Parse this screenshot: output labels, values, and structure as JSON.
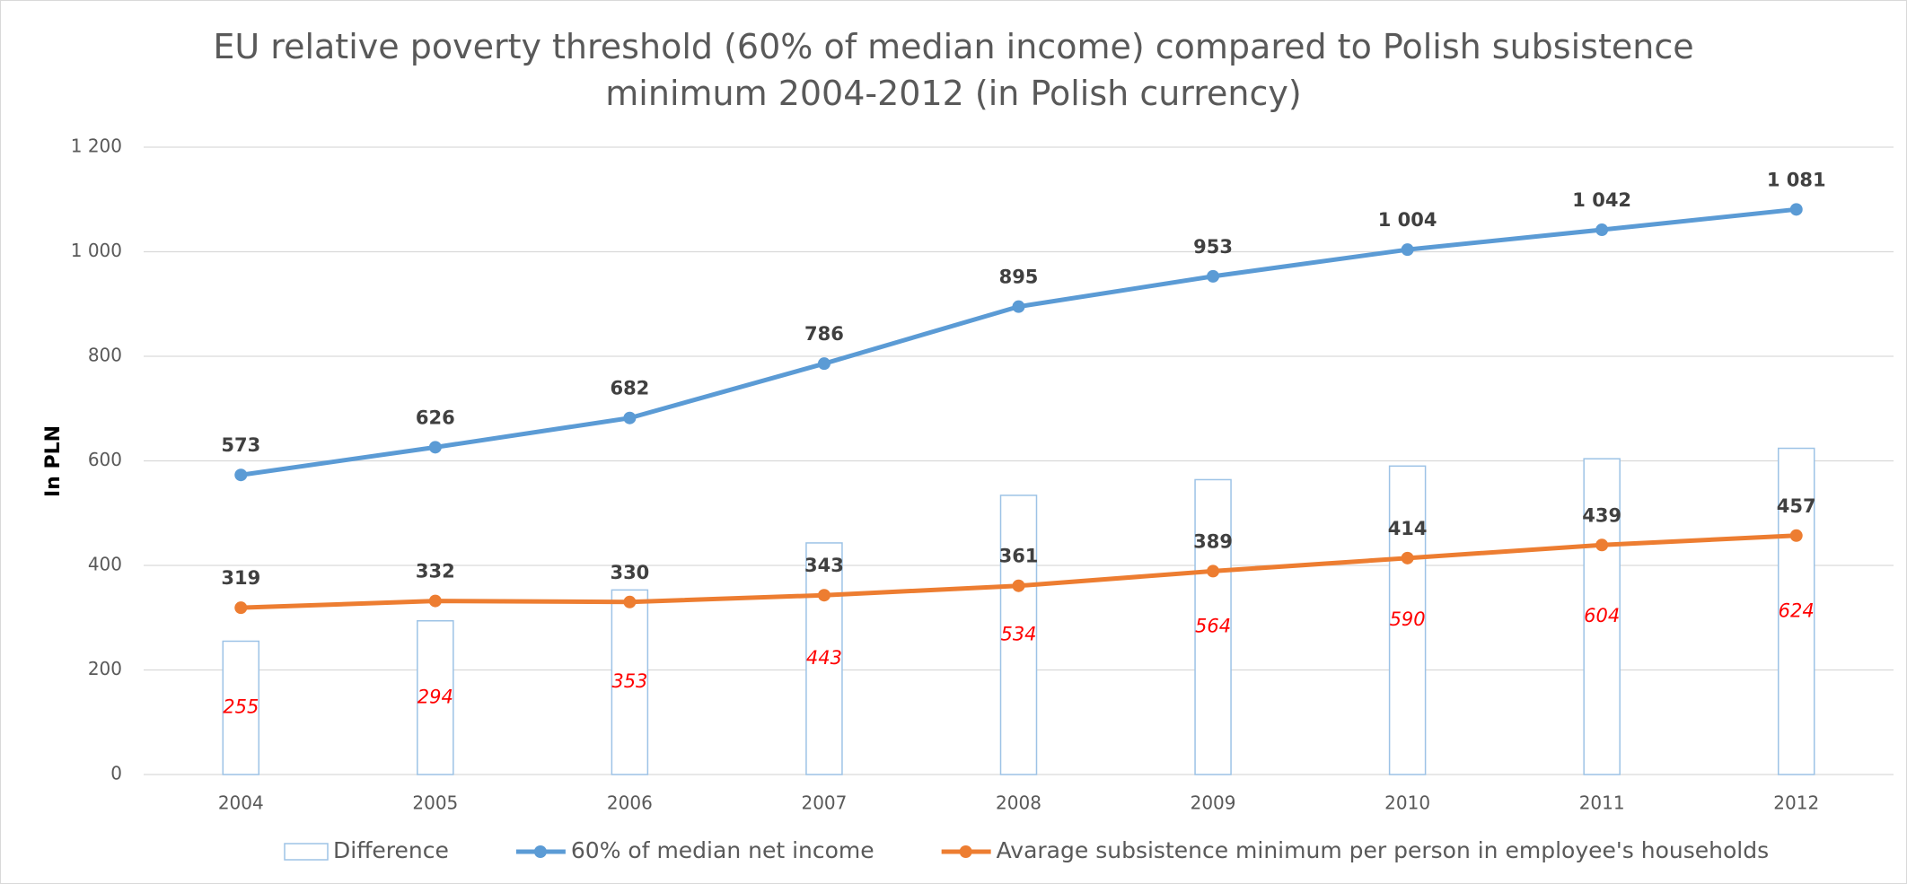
{
  "chart_data": {
    "type": "combo",
    "title": "EU relative poverty threshold (60% of median income) compared to Polish subsistence minimum 2004-2012 (in Polish currency)",
    "y_label": "In PLN",
    "categories": [
      "2004",
      "2005",
      "2006",
      "2007",
      "2008",
      "2009",
      "2010",
      "2011",
      "2012"
    ],
    "ylim": [
      0,
      1200
    ],
    "yticks": [
      0,
      200,
      400,
      600,
      800,
      {
        "value": 1000,
        "label": "1 000"
      },
      {
        "value": 1200,
        "label": "1 200"
      }
    ],
    "grid": true,
    "legend": "bottom",
    "series": [
      {
        "name": "Difference",
        "type": "bar",
        "color": "#9dc3e6",
        "label_color": "#ff0000",
        "values": [
          255,
          294,
          353,
          443,
          534,
          564,
          590,
          604,
          624
        ]
      },
      {
        "name": "60% of median net income",
        "type": "line",
        "color": "#5b9bd5",
        "values": [
          573,
          626,
          682,
          786,
          895,
          953,
          1004,
          1042,
          1081
        ],
        "value_labels": [
          "573",
          "626",
          "682",
          "786",
          "895",
          "953",
          "1 004",
          "1 042",
          "1 081"
        ]
      },
      {
        "name": "Avarage subsistence minimum per person in employee's households",
        "type": "line",
        "color": "#ed7d31",
        "values": [
          319,
          332,
          330,
          343,
          361,
          389,
          414,
          439,
          457
        ]
      }
    ]
  }
}
